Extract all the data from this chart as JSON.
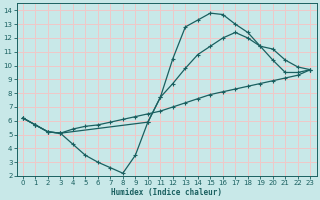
{
  "xlabel": "Humidex (Indice chaleur)",
  "background_color": "#c8e8e8",
  "grid_color": "#f0c8c8",
  "line_color": "#1a6060",
  "xlim": [
    -0.5,
    23.5
  ],
  "ylim": [
    2,
    14.5
  ],
  "xticks": [
    0,
    1,
    2,
    3,
    4,
    5,
    6,
    7,
    8,
    9,
    10,
    11,
    12,
    13,
    14,
    15,
    16,
    17,
    18,
    19,
    20,
    21,
    22,
    23
  ],
  "yticks": [
    2,
    3,
    4,
    5,
    6,
    7,
    8,
    9,
    10,
    11,
    12,
    13,
    14
  ],
  "curve1_x": [
    0,
    1,
    2,
    3,
    4,
    5,
    6,
    7,
    8,
    9,
    10,
    11,
    12,
    13,
    14,
    15,
    16,
    17,
    18,
    19,
    20,
    21,
    22,
    23
  ],
  "curve1_y": [
    6.2,
    5.7,
    5.2,
    5.1,
    4.3,
    3.5,
    3.0,
    2.6,
    2.2,
    3.5,
    5.9,
    7.7,
    10.5,
    12.8,
    13.3,
    13.8,
    13.7,
    13.0,
    12.4,
    11.4,
    10.4,
    9.5,
    9.5,
    9.7
  ],
  "curve2_x": [
    0,
    1,
    2,
    3,
    10,
    11,
    12,
    13,
    14,
    15,
    16,
    17,
    18,
    19,
    20,
    21,
    22,
    23
  ],
  "curve2_y": [
    6.2,
    5.7,
    5.2,
    5.1,
    5.9,
    7.7,
    8.7,
    9.8,
    10.8,
    11.4,
    12.0,
    12.4,
    12.0,
    11.4,
    11.2,
    10.4,
    9.9,
    9.7
  ],
  "curve3_x": [
    0,
    1,
    2,
    3,
    4,
    5,
    6,
    7,
    8,
    9,
    10,
    11,
    12,
    13,
    14,
    15,
    16,
    17,
    18,
    19,
    20,
    21,
    22,
    23
  ],
  "curve3_y": [
    6.2,
    5.7,
    5.2,
    5.1,
    5.4,
    5.6,
    5.7,
    5.9,
    6.1,
    6.3,
    6.5,
    6.7,
    7.0,
    7.3,
    7.6,
    7.9,
    8.1,
    8.3,
    8.5,
    8.7,
    8.9,
    9.1,
    9.3,
    9.7
  ]
}
